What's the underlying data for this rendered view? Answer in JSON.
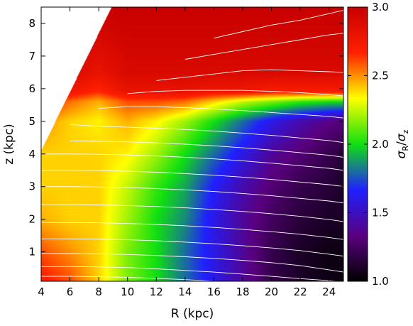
{
  "chart_data": {
    "type": "heatmap",
    "title": "",
    "xlabel": "R (kpc)",
    "ylabel": "z (kpc)",
    "xlim": [
      4,
      25
    ],
    "ylim": [
      0.1,
      8.5
    ],
    "xticks": [
      4,
      6,
      8,
      10,
      12,
      14,
      16,
      18,
      20,
      22,
      24
    ],
    "yticks": [
      1,
      2,
      3,
      4,
      5,
      6,
      7,
      8
    ],
    "colorbar": {
      "label": "σR/σz",
      "label_main": "σ",
      "label_sub1": "R",
      "label_sub2": "z",
      "range": [
        1.0,
        3.0
      ],
      "ticks": [
        "1.0",
        "1.5",
        "2.0",
        "2.5",
        "3.0"
      ],
      "colors": [
        "#000000",
        "#5a0080",
        "#2020ff",
        "#10e010",
        "#ffff00",
        "#ff2000",
        "#c80000"
      ]
    },
    "valid_region_left_edge": [
      [
        4,
        4.1
      ],
      [
        8.9,
        8.5
      ]
    ],
    "color_value_grid": {
      "R": [
        4,
        6,
        8,
        10,
        12,
        14,
        16,
        18,
        20,
        22,
        24,
        25
      ],
      "z": [
        0.1,
        1,
        2,
        3,
        4,
        5,
        5.6,
        5.9,
        6.5,
        8.5
      ],
      "values": [
        [
          2.7,
          2.6,
          2.4,
          2.15,
          2.0,
          1.8,
          1.6,
          1.4,
          1.2,
          1.1,
          1.05,
          1.05
        ],
        [
          2.6,
          2.5,
          2.4,
          2.15,
          2.0,
          1.8,
          1.6,
          1.4,
          1.2,
          1.1,
          1.05,
          1.05
        ],
        [
          2.45,
          2.4,
          2.4,
          2.2,
          2.0,
          1.85,
          1.6,
          1.4,
          1.25,
          1.15,
          1.1,
          1.1
        ],
        [
          2.4,
          2.4,
          2.4,
          2.25,
          2.05,
          1.9,
          1.65,
          1.45,
          1.3,
          1.2,
          1.15,
          1.1
        ],
        [
          2.4,
          2.4,
          2.4,
          2.35,
          2.2,
          2.0,
          1.8,
          1.6,
          1.4,
          1.3,
          1.2,
          1.15
        ],
        [
          2.5,
          2.4,
          2.35,
          2.45,
          2.35,
          2.2,
          2.0,
          1.8,
          1.6,
          1.45,
          1.35,
          1.3
        ],
        [
          2.7,
          2.55,
          2.45,
          2.6,
          2.6,
          2.55,
          2.4,
          2.25,
          2.15,
          2.05,
          2.0,
          2.0
        ],
        [
          2.9,
          2.75,
          2.65,
          2.8,
          2.8,
          2.8,
          2.75,
          2.75,
          2.7,
          2.7,
          2.7,
          2.7
        ],
        [
          3.0,
          2.9,
          2.8,
          2.9,
          2.9,
          2.9,
          2.9,
          2.9,
          2.9,
          2.9,
          2.9,
          2.9
        ],
        [
          3.0,
          3.0,
          3.0,
          3.0,
          3.0,
          3.0,
          3.0,
          3.0,
          3.0,
          3.0,
          3.0,
          3.0
        ]
      ]
    },
    "contours_z_at_R": {
      "R": [
        4,
        6,
        8,
        10,
        12,
        14,
        16,
        18,
        20,
        22,
        24,
        25
      ],
      "lines": [
        [
          0.25,
          0.25,
          0.24,
          0.22,
          0.19,
          0.15,
          0.1,
          null,
          null,
          null,
          null,
          null
        ],
        [
          0.55,
          0.55,
          0.54,
          0.52,
          0.48,
          0.43,
          0.38,
          0.32,
          0.25,
          0.18,
          0.12,
          0.08
        ],
        [
          0.95,
          0.95,
          0.94,
          0.92,
          0.89,
          0.85,
          0.8,
          0.74,
          0.67,
          0.58,
          0.45,
          0.38
        ],
        [
          1.4,
          1.4,
          1.39,
          1.37,
          1.34,
          1.3,
          1.25,
          1.19,
          1.12,
          1.04,
          0.93,
          0.87
        ],
        [
          1.9,
          1.9,
          1.89,
          1.87,
          1.84,
          1.8,
          1.75,
          1.69,
          1.62,
          1.54,
          1.44,
          1.38
        ],
        [
          2.45,
          2.45,
          2.44,
          2.42,
          2.39,
          2.35,
          2.3,
          2.24,
          2.17,
          2.09,
          1.99,
          1.93
        ],
        [
          3.0,
          3.0,
          2.99,
          2.97,
          2.94,
          2.9,
          2.85,
          2.79,
          2.72,
          2.64,
          2.56,
          2.5
        ],
        [
          3.5,
          3.5,
          3.49,
          3.47,
          3.44,
          3.4,
          3.35,
          3.29,
          3.22,
          3.14,
          3.06,
          3.0
        ],
        [
          4.0,
          4.0,
          3.99,
          3.97,
          3.94,
          3.9,
          3.85,
          3.79,
          3.72,
          3.64,
          3.56,
          3.5
        ],
        [
          4.4,
          4.4,
          4.39,
          4.37,
          4.34,
          4.3,
          4.25,
          4.19,
          4.12,
          4.04,
          3.96,
          3.9
        ],
        [
          null,
          4.9,
          4.85,
          4.82,
          4.79,
          4.75,
          4.7,
          4.64,
          4.57,
          4.49,
          4.41,
          4.35
        ],
        [
          null,
          null,
          5.4,
          5.45,
          5.45,
          5.42,
          5.38,
          5.33,
          5.27,
          5.21,
          5.15,
          5.1
        ],
        [
          null,
          null,
          null,
          5.85,
          5.92,
          5.95,
          5.95,
          5.95,
          5.92,
          5.88,
          5.82,
          5.78
        ],
        [
          null,
          null,
          null,
          null,
          6.25,
          6.35,
          6.45,
          6.55,
          6.58,
          6.55,
          6.52,
          6.5
        ],
        [
          null,
          null,
          null,
          null,
          null,
          6.9,
          7.05,
          7.2,
          7.35,
          7.5,
          7.65,
          7.7
        ],
        [
          null,
          null,
          null,
          null,
          null,
          null,
          7.55,
          7.75,
          7.95,
          8.1,
          8.3,
          8.4
        ]
      ]
    }
  }
}
